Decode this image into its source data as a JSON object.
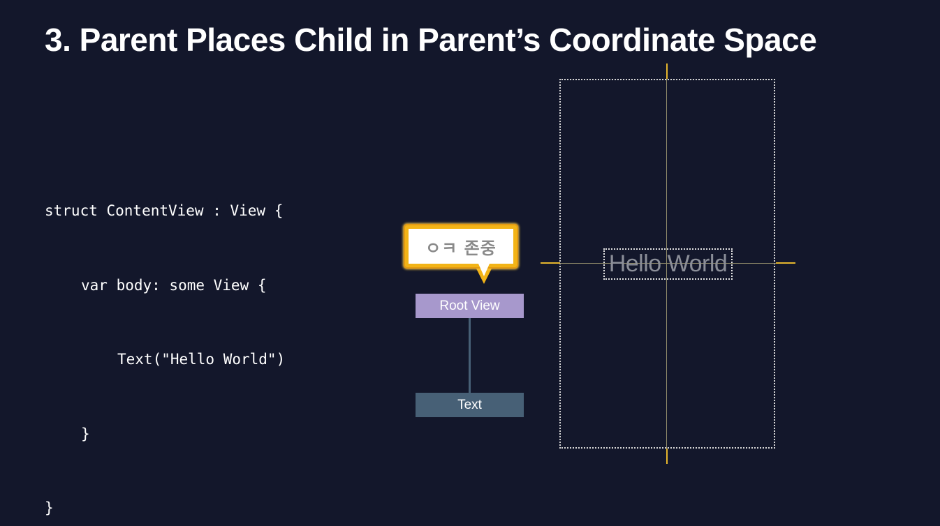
{
  "slide": {
    "title": "3. Parent Places Child in Parent’s Coordinate Space"
  },
  "code": {
    "lines": [
      "struct ContentView : View {",
      "var body: some View {",
      "Text(\"Hello World\")",
      "}",
      "}"
    ]
  },
  "bubble": {
    "text": "ㅇㅋ 존중"
  },
  "tree": {
    "root_label": "Root View",
    "child_label": "Text"
  },
  "canvas": {
    "hello_text": "Hello World"
  },
  "colors": {
    "background": "#13172b",
    "root_node": "#a798cc",
    "child_node": "#476076",
    "bubble_border": "#f2b417",
    "axis_accent": "#e6b62d"
  }
}
